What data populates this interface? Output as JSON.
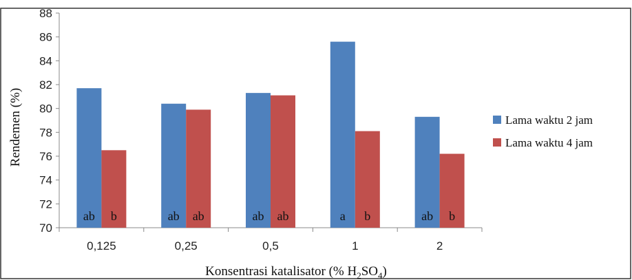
{
  "chart_data": {
    "type": "bar",
    "categories": [
      "0,125",
      "0,25",
      "0,5",
      "1",
      "2"
    ],
    "series": [
      {
        "name": "Lama waktu 2 jam",
        "color": "#4f81bd",
        "values": [
          81.7,
          80.4,
          81.3,
          85.6,
          79.3
        ],
        "labels": [
          "ab",
          "ab",
          "ab",
          "a",
          "ab"
        ]
      },
      {
        "name": "Lama waktu 4 jam",
        "color": "#c0504d",
        "values": [
          76.5,
          79.9,
          81.1,
          78.1,
          76.2
        ],
        "labels": [
          "b",
          "ab",
          "ab",
          "b",
          "b"
        ]
      }
    ],
    "ylabel": "Rendemen (%)",
    "xlabel": {
      "prefix": "Konsentrasi katalisator (% H",
      "sub1": "2",
      "mid": "SO",
      "sub2": "4",
      "suffix": ")"
    },
    "ylim": [
      70,
      88
    ],
    "yticks": [
      "70",
      "72",
      "74",
      "76",
      "78",
      "80",
      "82",
      "84",
      "86",
      "88"
    ],
    "grid": false,
    "legend_position": "right"
  }
}
